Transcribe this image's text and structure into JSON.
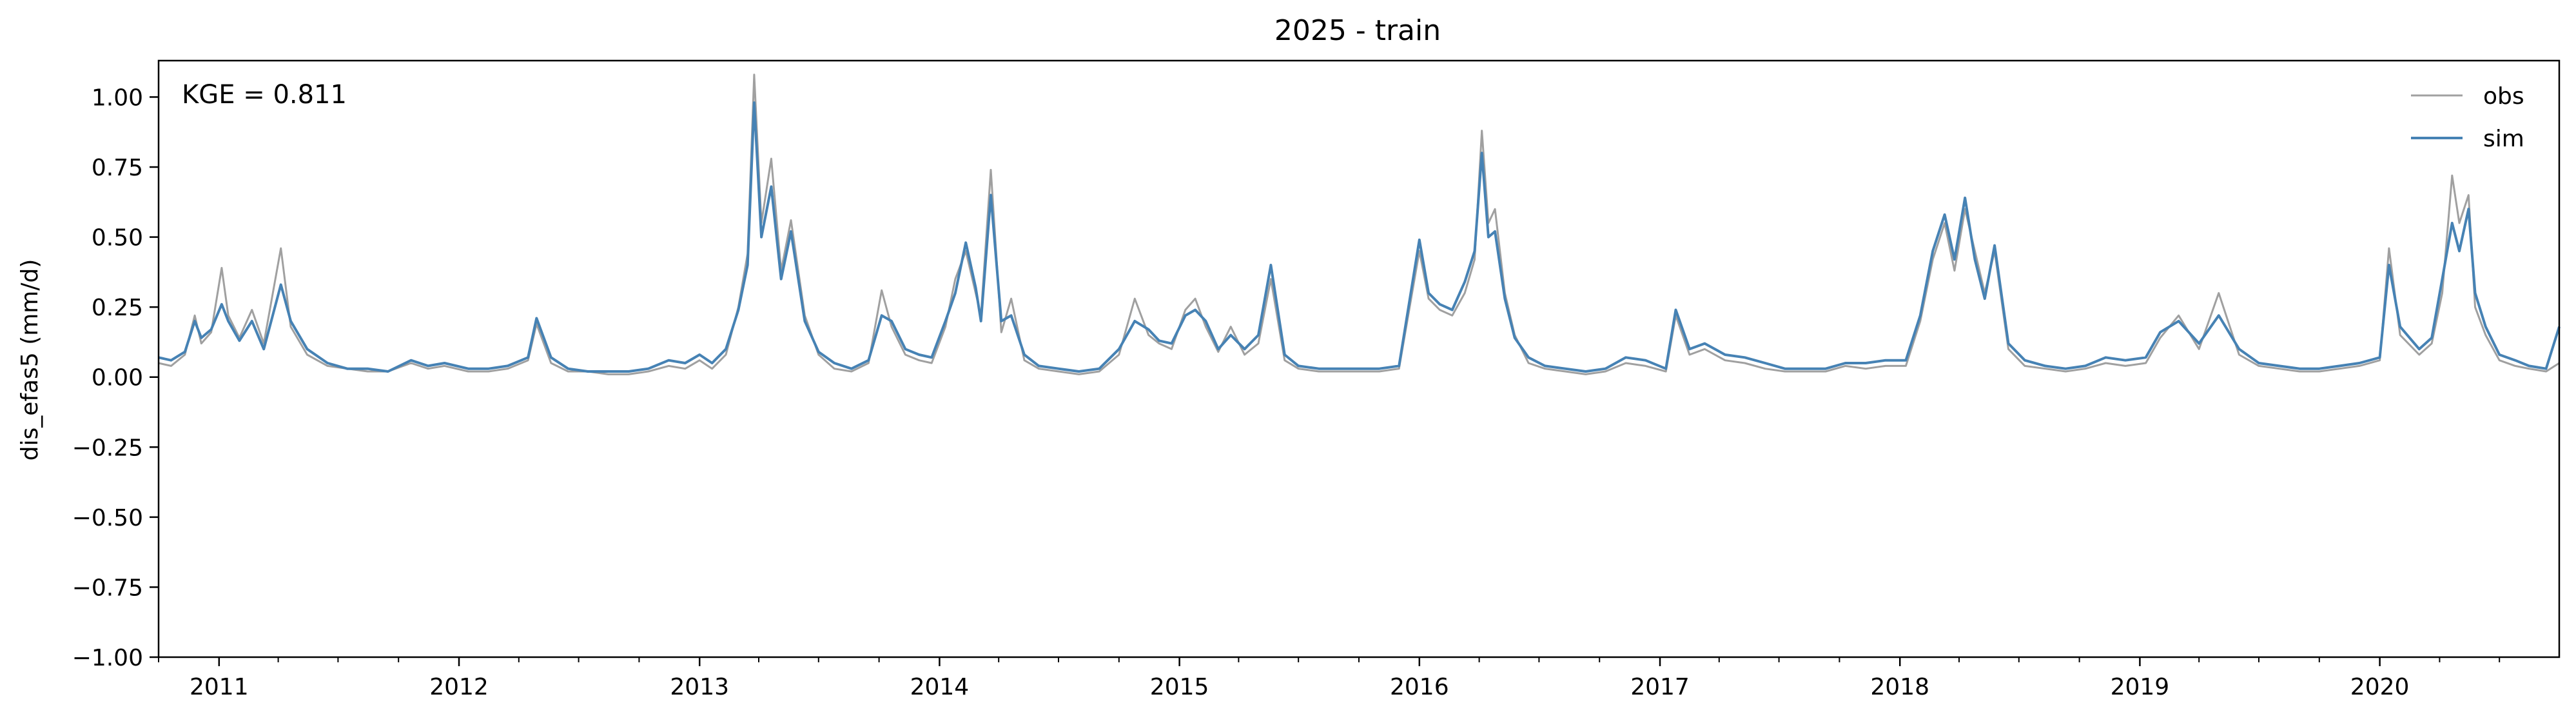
{
  "chart_data": {
    "type": "line",
    "title": "2025 - train",
    "xlabel": "",
    "ylabel": "dis_efas5 (mm/d)",
    "annotation": "KGE = 0.811",
    "xlim": [
      "2010-10-01",
      "2020-09-30"
    ],
    "ylim": [
      -1.0,
      1.13
    ],
    "yticks": [
      -1.0,
      -0.75,
      -0.5,
      -0.25,
      0.0,
      0.25,
      0.5,
      0.75,
      1.0
    ],
    "ytick_labels": [
      "−1.00",
      "−0.75",
      "−0.50",
      "−0.25",
      "0.00",
      "0.25",
      "0.50",
      "0.75",
      "1.00"
    ],
    "xticks": [
      "2011-01-01",
      "2012-01-01",
      "2013-01-01",
      "2014-01-01",
      "2015-01-01",
      "2016-01-01",
      "2017-01-01",
      "2018-01-01",
      "2019-01-01",
      "2020-01-01"
    ],
    "xtick_labels": [
      "2011",
      "2012",
      "2013",
      "2014",
      "2015",
      "2016",
      "2017",
      "2018",
      "2019",
      "2020"
    ],
    "grid": false,
    "legend_position": "top-right",
    "series": [
      {
        "name": "obs",
        "color": "#a0a0a0",
        "x": [
          "2010-10-01",
          "2010-10-20",
          "2010-11-10",
          "2010-11-25",
          "2010-12-05",
          "2010-12-20",
          "2011-01-05",
          "2011-01-15",
          "2011-02-01",
          "2011-02-20",
          "2011-03-10",
          "2011-04-05",
          "2011-04-20",
          "2011-05-15",
          "2011-06-15",
          "2011-07-15",
          "2011-08-15",
          "2011-09-15",
          "2011-10-20",
          "2011-11-15",
          "2011-12-10",
          "2012-01-15",
          "2012-02-15",
          "2012-03-15",
          "2012-04-15",
          "2012-04-28",
          "2012-05-20",
          "2012-06-15",
          "2012-07-15",
          "2012-08-15",
          "2012-09-15",
          "2012-10-15",
          "2012-11-15",
          "2012-12-10",
          "2013-01-01",
          "2013-01-20",
          "2013-02-10",
          "2013-03-01",
          "2013-03-15",
          "2013-03-25",
          "2013-04-05",
          "2013-04-20",
          "2013-05-05",
          "2013-05-20",
          "2013-06-10",
          "2013-07-01",
          "2013-07-25",
          "2013-08-20",
          "2013-09-15",
          "2013-10-05",
          "2013-10-20",
          "2013-11-10",
          "2013-12-01",
          "2013-12-20",
          "2014-01-10",
          "2014-01-25",
          "2014-02-10",
          "2014-02-25",
          "2014-03-05",
          "2014-03-20",
          "2014-04-05",
          "2014-04-20",
          "2014-05-10",
          "2014-06-01",
          "2014-07-01",
          "2014-08-01",
          "2014-09-01",
          "2014-10-01",
          "2014-10-25",
          "2014-11-15",
          "2014-12-01",
          "2014-12-20",
          "2015-01-10",
          "2015-01-25",
          "2015-02-10",
          "2015-03-01",
          "2015-03-20",
          "2015-04-10",
          "2015-05-01",
          "2015-05-20",
          "2015-06-10",
          "2015-07-01",
          "2015-08-01",
          "2015-09-01",
          "2015-10-01",
          "2015-11-01",
          "2015-12-01",
          "2016-01-01",
          "2016-01-15",
          "2016-02-01",
          "2016-02-20",
          "2016-03-10",
          "2016-03-25",
          "2016-04-05",
          "2016-04-15",
          "2016-04-25",
          "2016-05-10",
          "2016-05-25",
          "2016-06-15",
          "2016-07-10",
          "2016-08-10",
          "2016-09-10",
          "2016-10-10",
          "2016-11-10",
          "2016-12-10",
          "2017-01-10",
          "2017-01-25",
          "2017-02-15",
          "2017-03-10",
          "2017-04-10",
          "2017-05-10",
          "2017-06-10",
          "2017-07-10",
          "2017-08-10",
          "2017-09-10",
          "2017-10-10",
          "2017-11-10",
          "2017-12-10",
          "2018-01-10",
          "2018-02-01",
          "2018-02-20",
          "2018-03-10",
          "2018-03-25",
          "2018-04-10",
          "2018-04-25",
          "2018-05-10",
          "2018-05-25",
          "2018-06-15",
          "2018-07-10",
          "2018-08-10",
          "2018-09-10",
          "2018-10-10",
          "2018-11-10",
          "2018-12-10",
          "2019-01-10",
          "2019-02-01",
          "2019-03-01",
          "2019-04-01",
          "2019-05-01",
          "2019-06-01",
          "2019-07-01",
          "2019-08-01",
          "2019-09-01",
          "2019-10-01",
          "2019-11-01",
          "2019-12-01",
          "2020-01-01",
          "2020-01-15",
          "2020-02-01",
          "2020-03-01",
          "2020-03-20",
          "2020-04-05",
          "2020-04-20",
          "2020-05-01",
          "2020-05-15",
          "2020-05-25",
          "2020-06-10",
          "2020-07-01",
          "2020-07-25",
          "2020-08-15",
          "2020-09-10",
          "2020-09-30"
        ],
        "y": [
          0.05,
          0.04,
          0.08,
          0.22,
          0.12,
          0.16,
          0.39,
          0.22,
          0.14,
          0.24,
          0.12,
          0.46,
          0.18,
          0.08,
          0.04,
          0.03,
          0.02,
          0.02,
          0.05,
          0.03,
          0.04,
          0.02,
          0.02,
          0.03,
          0.06,
          0.19,
          0.05,
          0.02,
          0.02,
          0.01,
          0.01,
          0.02,
          0.04,
          0.03,
          0.06,
          0.03,
          0.08,
          0.25,
          0.44,
          1.08,
          0.55,
          0.78,
          0.38,
          0.56,
          0.22,
          0.08,
          0.03,
          0.02,
          0.05,
          0.31,
          0.18,
          0.08,
          0.06,
          0.05,
          0.18,
          0.35,
          0.45,
          0.3,
          0.22,
          0.74,
          0.16,
          0.28,
          0.06,
          0.03,
          0.02,
          0.01,
          0.02,
          0.08,
          0.28,
          0.15,
          0.12,
          0.1,
          0.24,
          0.28,
          0.18,
          0.09,
          0.18,
          0.08,
          0.12,
          0.35,
          0.06,
          0.03,
          0.02,
          0.02,
          0.02,
          0.02,
          0.03,
          0.45,
          0.28,
          0.24,
          0.22,
          0.3,
          0.42,
          0.88,
          0.55,
          0.6,
          0.3,
          0.15,
          0.05,
          0.03,
          0.02,
          0.01,
          0.02,
          0.05,
          0.04,
          0.02,
          0.22,
          0.08,
          0.1,
          0.06,
          0.05,
          0.03,
          0.02,
          0.02,
          0.02,
          0.04,
          0.03,
          0.04,
          0.04,
          0.2,
          0.42,
          0.55,
          0.38,
          0.6,
          0.45,
          0.3,
          0.45,
          0.1,
          0.04,
          0.03,
          0.02,
          0.03,
          0.05,
          0.04,
          0.05,
          0.14,
          0.22,
          0.1,
          0.3,
          0.08,
          0.04,
          0.03,
          0.02,
          0.02,
          0.03,
          0.04,
          0.06,
          0.46,
          0.15,
          0.08,
          0.12,
          0.3,
          0.72,
          0.55,
          0.65,
          0.25,
          0.15,
          0.06,
          0.04,
          0.03,
          0.02,
          0.05
        ]
      },
      {
        "name": "sim",
        "color": "#4682b4",
        "x": [
          "2010-10-01",
          "2010-10-20",
          "2010-11-10",
          "2010-11-25",
          "2010-12-05",
          "2010-12-20",
          "2011-01-05",
          "2011-01-15",
          "2011-02-01",
          "2011-02-20",
          "2011-03-10",
          "2011-04-05",
          "2011-04-20",
          "2011-05-15",
          "2011-06-15",
          "2011-07-15",
          "2011-08-15",
          "2011-09-15",
          "2011-10-20",
          "2011-11-15",
          "2011-12-10",
          "2012-01-15",
          "2012-02-15",
          "2012-03-15",
          "2012-04-15",
          "2012-04-28",
          "2012-05-20",
          "2012-06-15",
          "2012-07-15",
          "2012-08-15",
          "2012-09-15",
          "2012-10-15",
          "2012-11-15",
          "2012-12-10",
          "2013-01-01",
          "2013-01-20",
          "2013-02-10",
          "2013-03-01",
          "2013-03-15",
          "2013-03-25",
          "2013-04-05",
          "2013-04-20",
          "2013-05-05",
          "2013-05-20",
          "2013-06-10",
          "2013-07-01",
          "2013-07-25",
          "2013-08-20",
          "2013-09-15",
          "2013-10-05",
          "2013-10-20",
          "2013-11-10",
          "2013-12-01",
          "2013-12-20",
          "2014-01-10",
          "2014-01-25",
          "2014-02-10",
          "2014-02-25",
          "2014-03-05",
          "2014-03-20",
          "2014-04-05",
          "2014-04-20",
          "2014-05-10",
          "2014-06-01",
          "2014-07-01",
          "2014-08-01",
          "2014-09-01",
          "2014-10-01",
          "2014-10-25",
          "2014-11-15",
          "2014-12-01",
          "2014-12-20",
          "2015-01-10",
          "2015-01-25",
          "2015-02-10",
          "2015-03-01",
          "2015-03-20",
          "2015-04-10",
          "2015-05-01",
          "2015-05-20",
          "2015-06-10",
          "2015-07-01",
          "2015-08-01",
          "2015-09-01",
          "2015-10-01",
          "2015-11-01",
          "2015-12-01",
          "2016-01-01",
          "2016-01-15",
          "2016-02-01",
          "2016-02-20",
          "2016-03-10",
          "2016-03-25",
          "2016-04-05",
          "2016-04-15",
          "2016-04-25",
          "2016-05-10",
          "2016-05-25",
          "2016-06-15",
          "2016-07-10",
          "2016-08-10",
          "2016-09-10",
          "2016-10-10",
          "2016-11-10",
          "2016-12-10",
          "2017-01-10",
          "2017-01-25",
          "2017-02-15",
          "2017-03-10",
          "2017-04-10",
          "2017-05-10",
          "2017-06-10",
          "2017-07-10",
          "2017-08-10",
          "2017-09-10",
          "2017-10-10",
          "2017-11-10",
          "2017-12-10",
          "2018-01-10",
          "2018-02-01",
          "2018-02-20",
          "2018-03-10",
          "2018-03-25",
          "2018-04-10",
          "2018-04-25",
          "2018-05-10",
          "2018-05-25",
          "2018-06-15",
          "2018-07-10",
          "2018-08-10",
          "2018-09-10",
          "2018-10-10",
          "2018-11-10",
          "2018-12-10",
          "2019-01-10",
          "2019-02-01",
          "2019-03-01",
          "2019-04-01",
          "2019-05-01",
          "2019-06-01",
          "2019-07-01",
          "2019-08-01",
          "2019-09-01",
          "2019-10-01",
          "2019-11-01",
          "2019-12-01",
          "2020-01-01",
          "2020-01-15",
          "2020-02-01",
          "2020-03-01",
          "2020-03-20",
          "2020-04-05",
          "2020-04-20",
          "2020-05-01",
          "2020-05-15",
          "2020-05-25",
          "2020-06-10",
          "2020-07-01",
          "2020-07-25",
          "2020-08-15",
          "2020-09-10",
          "2020-09-30"
        ],
        "y": [
          0.07,
          0.06,
          0.09,
          0.2,
          0.14,
          0.17,
          0.26,
          0.2,
          0.13,
          0.2,
          0.1,
          0.33,
          0.2,
          0.1,
          0.05,
          0.03,
          0.03,
          0.02,
          0.06,
          0.04,
          0.05,
          0.03,
          0.03,
          0.04,
          0.07,
          0.21,
          0.07,
          0.03,
          0.02,
          0.02,
          0.02,
          0.03,
          0.06,
          0.05,
          0.08,
          0.05,
          0.1,
          0.24,
          0.4,
          0.98,
          0.5,
          0.68,
          0.35,
          0.52,
          0.2,
          0.09,
          0.05,
          0.03,
          0.06,
          0.22,
          0.2,
          0.1,
          0.08,
          0.07,
          0.2,
          0.3,
          0.48,
          0.32,
          0.2,
          0.65,
          0.2,
          0.22,
          0.08,
          0.04,
          0.03,
          0.02,
          0.03,
          0.1,
          0.2,
          0.17,
          0.13,
          0.12,
          0.22,
          0.24,
          0.2,
          0.1,
          0.15,
          0.1,
          0.15,
          0.4,
          0.08,
          0.04,
          0.03,
          0.03,
          0.03,
          0.03,
          0.04,
          0.49,
          0.3,
          0.26,
          0.24,
          0.34,
          0.45,
          0.8,
          0.5,
          0.52,
          0.28,
          0.14,
          0.07,
          0.04,
          0.03,
          0.02,
          0.03,
          0.07,
          0.06,
          0.03,
          0.24,
          0.1,
          0.12,
          0.08,
          0.07,
          0.05,
          0.03,
          0.03,
          0.03,
          0.05,
          0.05,
          0.06,
          0.06,
          0.22,
          0.45,
          0.58,
          0.42,
          0.64,
          0.42,
          0.28,
          0.47,
          0.12,
          0.06,
          0.04,
          0.03,
          0.04,
          0.07,
          0.06,
          0.07,
          0.16,
          0.2,
          0.12,
          0.22,
          0.1,
          0.05,
          0.04,
          0.03,
          0.03,
          0.04,
          0.05,
          0.07,
          0.4,
          0.18,
          0.1,
          0.14,
          0.35,
          0.55,
          0.45,
          0.6,
          0.3,
          0.18,
          0.08,
          0.06,
          0.04,
          0.03,
          0.18
        ]
      }
    ]
  }
}
